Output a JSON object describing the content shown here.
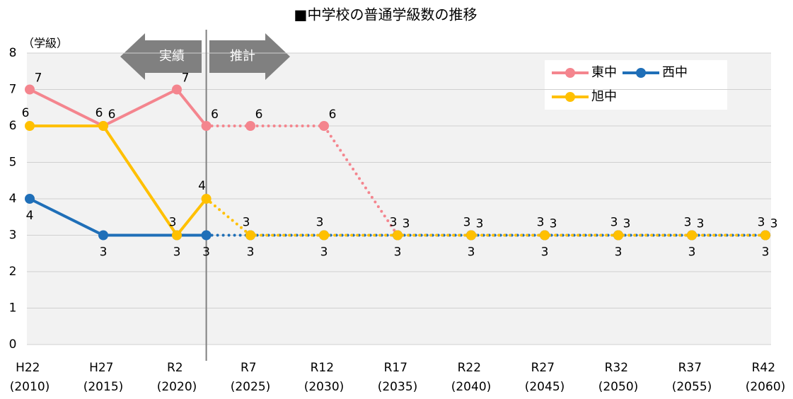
{
  "chart_data": {
    "type": "line",
    "title": "■中学校の普通学級数の推移",
    "y_label": "（学級）",
    "annotations": [
      "実績",
      "推計"
    ],
    "x": [
      2010,
      2015,
      2020,
      2022,
      2025,
      2030,
      2035,
      2040,
      2045,
      2050,
      2055,
      2060
    ],
    "xlim": [
      2010,
      2060
    ],
    "xticks": [
      {
        "value": 2010,
        "label": "H22 (2010)"
      },
      {
        "value": 2015,
        "label": "H27 (2015)"
      },
      {
        "value": 2020,
        "label": "R2 (2020)"
      },
      {
        "value": 2025,
        "label": "R7 (2025)"
      },
      {
        "value": 2030,
        "label": "R12 (2030)"
      },
      {
        "value": 2035,
        "label": "R17 (2035)"
      },
      {
        "value": 2040,
        "label": "R22 (2040)"
      },
      {
        "value": 2045,
        "label": "R27 (2045)"
      },
      {
        "value": 2050,
        "label": "R32 (2050)"
      },
      {
        "value": 2055,
        "label": "R37 (2055)"
      },
      {
        "value": 2060,
        "label": "R42 (2060)"
      }
    ],
    "ylim": [
      0,
      8
    ],
    "yticks": [
      0,
      1,
      2,
      3,
      4,
      5,
      6,
      7,
      8
    ],
    "grid": true,
    "divider_x": 2022,
    "series": [
      {
        "name": "東中",
        "color": "#f4858e",
        "values": [
          7,
          6,
          7,
          6,
          6,
          6,
          3,
          3,
          3,
          3,
          3,
          3
        ]
      },
      {
        "name": "西中",
        "color": "#1f6fb8",
        "values": [
          4,
          3,
          3,
          3,
          3,
          3,
          3,
          3,
          3,
          3,
          3,
          3
        ]
      },
      {
        "name": "旭中",
        "color": "#ffc000",
        "values": [
          6,
          6,
          3,
          4,
          3,
          3,
          3,
          3,
          3,
          3,
          3,
          3
        ]
      }
    ]
  }
}
